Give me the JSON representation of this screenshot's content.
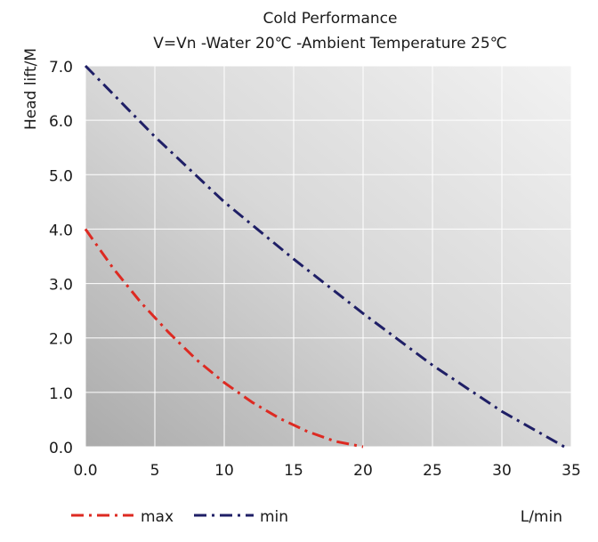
{
  "chart_data": {
    "type": "line",
    "title": "Cold Performance",
    "subtitle": "V=Vn -Water 20℃ -Ambient Temperature 25℃",
    "ylabel": "Head lift/M",
    "xlabel": "L/min",
    "xlim": [
      0,
      35
    ],
    "ylim": [
      0,
      7
    ],
    "x_ticks": [
      "0.0",
      "5",
      "10",
      "15",
      "20",
      "25",
      "30",
      "35"
    ],
    "y_ticks": [
      "0.0",
      "1.0",
      "2.0",
      "3.0",
      "4.0",
      "5.0",
      "6.0",
      "7.0"
    ],
    "grid": true,
    "legend_position": "bottom-left",
    "series": [
      {
        "name": "max",
        "color": "#dd2a22",
        "dash": "dash-dot",
        "x": [
          0,
          2,
          4,
          6,
          8,
          10,
          12,
          14,
          16,
          18,
          20
        ],
        "y": [
          4.0,
          3.28,
          2.65,
          2.1,
          1.6,
          1.18,
          0.82,
          0.52,
          0.28,
          0.1,
          0.0
        ]
      },
      {
        "name": "min",
        "color": "#1f1f66",
        "dash": "dash-dot",
        "x": [
          0,
          5,
          10,
          15,
          20,
          25,
          30,
          34.5
        ],
        "y": [
          7.0,
          5.7,
          4.5,
          3.45,
          2.45,
          1.5,
          0.65,
          0.0
        ]
      }
    ]
  }
}
